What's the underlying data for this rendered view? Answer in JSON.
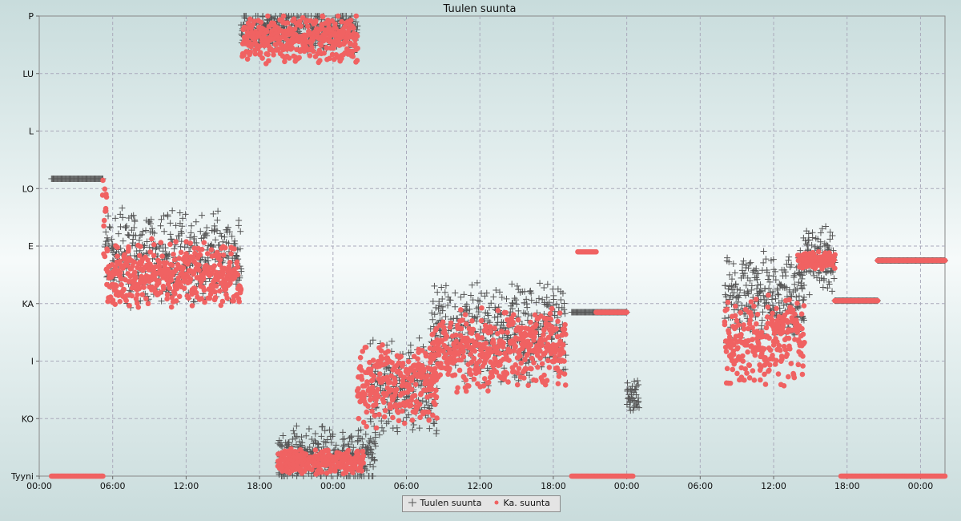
{
  "chart_data": {
    "type": "scatter",
    "title": "Tuulen suunta",
    "x_tick_labels": [
      "00:00",
      "06:00",
      "12:00",
      "18:00",
      "00:00",
      "06:00",
      "12:00",
      "18:00",
      "00:00",
      "06:00",
      "12:00",
      "18:00",
      "00:00"
    ],
    "x_range_hours": [
      0,
      74
    ],
    "y_tick_labels": [
      "Tyyni",
      "KO",
      "I",
      "KA",
      "E",
      "LO",
      "L",
      "LU",
      "P"
    ],
    "y_range": [
      0,
      8
    ],
    "grid": true,
    "legend": "bottom-center",
    "series": [
      {
        "name": "Tuulen suunta",
        "marker": "plus",
        "color": "#555555",
        "segments": [
          {
            "x0": 1.0,
            "x1": 5.2,
            "y": 5.17,
            "spread": 0.0
          },
          {
            "x0": 5.4,
            "x1": 16.5,
            "y": 3.8,
            "spread": 0.55
          },
          {
            "x0": 16.5,
            "x1": 26.0,
            "y": 7.75,
            "spread": 0.25
          },
          {
            "x0": 19.5,
            "x1": 27.5,
            "y": 0.35,
            "spread": 0.35
          },
          {
            "x0": 27.0,
            "x1": 32.5,
            "y": 1.5,
            "spread": 0.6
          },
          {
            "x0": 32.0,
            "x1": 43.0,
            "y": 2.5,
            "spread": 0.6
          },
          {
            "x0": 43.5,
            "x1": 48.0,
            "y": 2.85,
            "spread": 0.0
          },
          {
            "x0": 48.0,
            "x1": 49.0,
            "y": 1.4,
            "spread": 0.2
          },
          {
            "x0": 56.0,
            "x1": 62.5,
            "y": 3.1,
            "spread": 0.55
          },
          {
            "x0": 62.0,
            "x1": 65.0,
            "y": 3.75,
            "spread": 0.4
          },
          {
            "x0": 65.0,
            "x1": 68.5,
            "y": 3.05,
            "spread": 0.0
          },
          {
            "x0": 68.5,
            "x1": 74.0,
            "y": 3.75,
            "spread": 0.0
          }
        ]
      },
      {
        "name": "Ka. suunta",
        "marker": "dot",
        "color": "#f06262",
        "segments": [
          {
            "x0": 1.0,
            "x1": 5.2,
            "y": 0.0,
            "spread": 0.0
          },
          {
            "x0": 5.2,
            "x1": 5.5,
            "y": 4.6,
            "spread": 0.6
          },
          {
            "x0": 5.5,
            "x1": 16.5,
            "y": 3.5,
            "spread": 0.4
          },
          {
            "x0": 16.6,
            "x1": 26.0,
            "y": 7.6,
            "spread": 0.3
          },
          {
            "x0": 19.5,
            "x1": 26.5,
            "y": 0.25,
            "spread": 0.15
          },
          {
            "x0": 26.0,
            "x1": 32.5,
            "y": 1.6,
            "spread": 0.5
          },
          {
            "x0": 32.0,
            "x1": 43.0,
            "y": 2.2,
            "spread": 0.5
          },
          {
            "x0": 43.5,
            "x1": 48.5,
            "y": 0.0,
            "spread": 0.0
          },
          {
            "x0": 44.0,
            "x1": 45.5,
            "y": 3.9,
            "spread": 0.0
          },
          {
            "x0": 45.5,
            "x1": 48.0,
            "y": 2.85,
            "spread": 0.0
          },
          {
            "x0": 56.0,
            "x1": 62.5,
            "y": 2.4,
            "spread": 0.55
          },
          {
            "x0": 62.0,
            "x1": 65.0,
            "y": 3.75,
            "spread": 0.1
          },
          {
            "x0": 65.0,
            "x1": 68.5,
            "y": 3.05,
            "spread": 0.0
          },
          {
            "x0": 65.5,
            "x1": 74.0,
            "y": 0.0,
            "spread": 0.0
          },
          {
            "x0": 68.5,
            "x1": 74.0,
            "y": 3.75,
            "spread": 0.0
          }
        ]
      }
    ]
  }
}
